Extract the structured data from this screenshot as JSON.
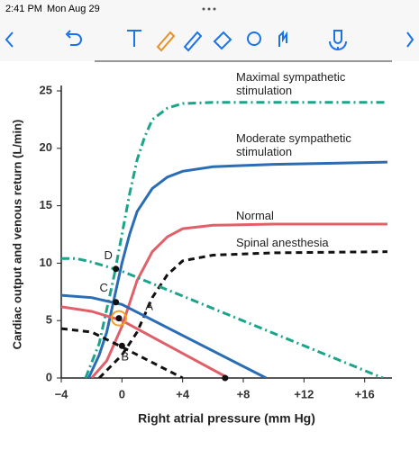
{
  "status_bar": {
    "time": "2:41 PM",
    "date": "Mon Aug 29"
  },
  "chart_data": {
    "type": "line",
    "xlabel": "Right atrial pressure (mm Hg)",
    "ylabel": "Cardiac output and venous return (L/min)",
    "xlim": [
      -4,
      17.8
    ],
    "ylim": [
      0,
      25
    ],
    "xticks": [
      {
        "value": -4,
        "label": "−4"
      },
      0,
      {
        "value": 4,
        "label": "+4"
      },
      {
        "value": 8,
        "label": "+8"
      },
      {
        "value": 12,
        "label": "+12"
      },
      {
        "value": 16,
        "label": "+16"
      }
    ],
    "yticks": [
      0,
      5,
      10,
      15,
      20,
      25
    ],
    "series": [
      {
        "name": "Maximal sympathetic stimulation",
        "color": "#1aa58a",
        "style": "dashdot",
        "x": [
          -2.4,
          -1.5,
          -1,
          -0.5,
          0,
          0.5,
          1,
          1.5,
          2,
          3,
          4,
          6,
          17.5
        ],
        "values": [
          0,
          3,
          6,
          9,
          12.5,
          16,
          19,
          21,
          22.5,
          23.5,
          23.9,
          24,
          24
        ]
      },
      {
        "name": "Moderate sympathetic stimulation",
        "color": "#2a6db5",
        "style": "solid",
        "x": [
          -2.2,
          -1.5,
          -1,
          -0.5,
          0,
          0.5,
          1,
          2,
          3,
          4,
          6,
          10,
          17.5
        ],
        "values": [
          0,
          2,
          4,
          7,
          10,
          12.5,
          14.5,
          16.5,
          17.5,
          18,
          18.4,
          18.6,
          18.8
        ]
      },
      {
        "name": "Normal",
        "color": "#e0606a",
        "style": "solid",
        "x": [
          -2,
          -1,
          0,
          0.5,
          1,
          2,
          3,
          4,
          6,
          10,
          17.5
        ],
        "values": [
          0,
          1.5,
          4.5,
          6.5,
          8.5,
          11,
          12.3,
          13,
          13.3,
          13.4,
          13.4
        ]
      },
      {
        "name": "Spinal anesthesia",
        "color": "#111111",
        "style": "dashed",
        "x": [
          -1.5,
          0,
          1,
          2,
          3,
          4,
          6,
          10,
          17.5
        ],
        "values": [
          0,
          2,
          4,
          7,
          9,
          10.2,
          10.7,
          10.9,
          11
        ]
      },
      {
        "color": "#1aa58a",
        "style": "dashdot",
        "x": [
          -4,
          -3,
          -2,
          0,
          17.2
        ],
        "values": [
          10.4,
          10.4,
          10.1,
          9.3,
          0
        ]
      },
      {
        "color": "#2a6db5",
        "style": "solid",
        "x": [
          -4,
          -2,
          0,
          9.5
        ],
        "values": [
          7.2,
          7,
          6.4,
          0
        ]
      },
      {
        "color": "#e0606a",
        "style": "solid",
        "x": [
          -4,
          -2,
          0,
          7
        ],
        "values": [
          6.2,
          5.8,
          5,
          0
        ]
      },
      {
        "color": "#111111",
        "style": "dashed",
        "x": [
          -4,
          -2,
          0,
          4
        ],
        "values": [
          4.3,
          4,
          2.7,
          0
        ]
      }
    ],
    "points": {
      "x": [
        -0.4,
        -0.4,
        -0.2,
        0,
        6.8
      ],
      "y": [
        9.5,
        6.6,
        5.2,
        2.8,
        0
      ]
    },
    "annotations": [
      {
        "text": "D",
        "x": -0.9,
        "y": 10.6
      },
      {
        "text": "C",
        "x": -1.2,
        "y": 7.8
      },
      {
        "text": "A",
        "x": 1.8,
        "y": 6.2
      },
      {
        "text": "B",
        "x": 0.2,
        "y": 1.8
      }
    ]
  }
}
